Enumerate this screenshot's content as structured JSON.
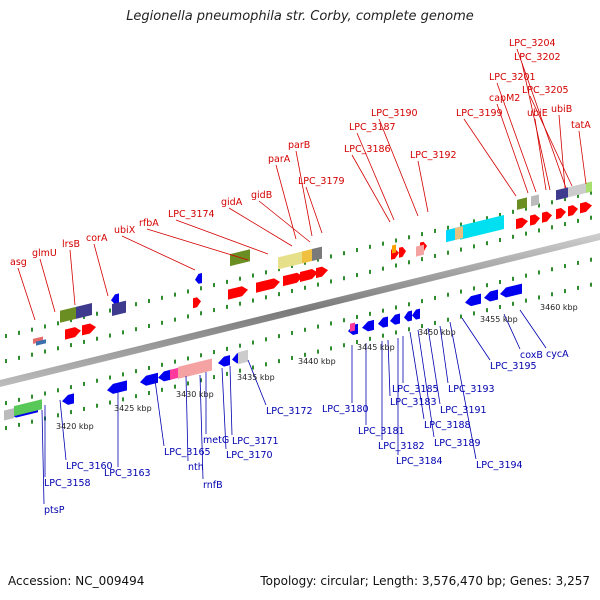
{
  "title": "Legionella pneumophila str. Corby, complete genome",
  "footer": {
    "accession": "Accession: NC_009494",
    "summary": "Topology: circular; Length: 3,576,470 bp; Genes: 3,257"
  },
  "colors": {
    "forward": "#ff0000",
    "reverse": "#0000ee",
    "top_label": "#d40000",
    "bottom_label": "#0000b0",
    "axis": "#8a8a8a",
    "tick": "#2e8b2e"
  },
  "kbp_labels": [
    "3420 kbp",
    "3425 kbp",
    "3430 kbp",
    "3435 kbp",
    "3440 kbp",
    "3445 kbp",
    "3450 kbp",
    "3455 kbp",
    "3460 kbp"
  ],
  "top_labels": [
    "asg",
    "glmU",
    "lrsB",
    "corA",
    "ubiX",
    "rfbA",
    "LPC_3174",
    "gidA",
    "gidB",
    "parA",
    "parB",
    "LPC_3179",
    "LPC_3186",
    "LPC_3187",
    "LPC_3190",
    "LPC_3192",
    "LPC_3199",
    "capM2",
    "LPC_3201",
    "LPC_3202",
    "LPC_3204",
    "ubiE",
    "LPC_3205",
    "ubiB",
    "tatA"
  ],
  "bottom_labels": [
    "ptsP",
    "LPC_3158",
    "LPC_3160",
    "LPC_3163",
    "LPC_3165",
    "nth",
    "rnfB",
    "metG",
    "LPC_3170",
    "LPC_3171",
    "LPC_3172",
    "LPC_3180",
    "LPC_3181",
    "LPC_3182",
    "LPC_3183",
    "LPC_3184",
    "LPC_3185",
    "LPC_3188",
    "LPC_3189",
    "LPC_3191",
    "LPC_3193",
    "LPC_3194",
    "LPC_3195",
    "coxB",
    "cycA"
  ]
}
